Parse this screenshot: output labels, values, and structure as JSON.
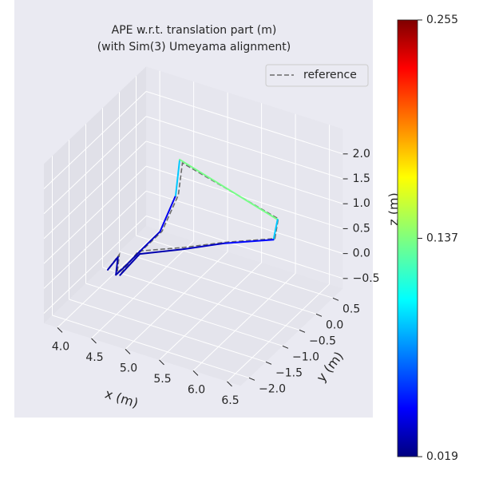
{
  "chart_data": {
    "type": "line3d",
    "title": "APE w.r.t. translation part (m)",
    "subtitle": "(with Sim(3) Umeyama alignment)",
    "xlabel": "x (m)",
    "ylabel": "y (m)",
    "zlabel": "z (m)",
    "xlim": [
      3.8,
      6.7
    ],
    "ylim": [
      -2.25,
      0.8
    ],
    "zlim": [
      -0.7,
      2.5
    ],
    "xticks": [
      {
        "value": 4,
        "label": "4.0"
      },
      {
        "value": 4.5,
        "label": "4.5"
      },
      {
        "value": 5,
        "label": "5.0"
      },
      {
        "value": 5.5,
        "label": "5.5"
      },
      {
        "value": 6,
        "label": "6.0"
      },
      {
        "value": 6.5,
        "label": "6.5"
      }
    ],
    "yticks": [
      {
        "value": -2,
        "label": "−2.0"
      },
      {
        "value": -1.5,
        "label": "−1.5"
      },
      {
        "value": -1,
        "label": "−1.0"
      },
      {
        "value": -0.5,
        "label": "−0.5"
      },
      {
        "value": 0,
        "label": "0.0"
      },
      {
        "value": 0.5,
        "label": "0.5"
      }
    ],
    "zticks": [
      {
        "value": -0.5,
        "label": "−0.5"
      },
      {
        "value": 0,
        "label": "0.0"
      },
      {
        "value": 0.5,
        "label": "0.5"
      },
      {
        "value": 1,
        "label": "1.0"
      },
      {
        "value": 1.5,
        "label": "1.5"
      },
      {
        "value": 2,
        "label": "2.0"
      }
    ],
    "grid": true,
    "trajectory": {
      "x": [
        4.0,
        4.15,
        4.12,
        4.24,
        4.47,
        4.77,
        5.0,
        5.06,
        5.86,
        5.8,
        5.36,
        4.97,
        4.47,
        4.18
      ],
      "y": [
        -0.75,
        -0.75,
        -0.75,
        -0.75,
        -0.75,
        -0.75,
        -0.75,
        -0.75,
        0.55,
        0.55,
        -0.05,
        -0.45,
        -0.75,
        -0.75
      ],
      "z": [
        -0.5,
        -0.18,
        -0.55,
        -0.35,
        0.07,
        0.6,
        1.42,
        2.17,
        0.48,
        0.05,
        0.17,
        0.14,
        0.02,
        -0.53
      ],
      "errors": [
        0.03,
        0.03,
        0.03,
        0.03,
        0.03,
        0.04,
        0.05,
        0.14,
        0.13,
        0.06,
        0.04,
        0.03,
        0.03,
        0.03
      ]
    },
    "reference": {
      "name": "reference",
      "color": "#6b6b6b",
      "x": [
        4.02,
        4.17,
        4.14,
        4.26,
        4.5,
        4.8,
        5.04,
        5.1,
        5.87,
        5.82,
        5.38,
        4.98,
        4.45,
        4.2
      ],
      "y": [
        -0.75,
        -0.75,
        -0.75,
        -0.75,
        -0.75,
        -0.75,
        -0.75,
        -0.75,
        0.55,
        0.55,
        -0.05,
        -0.45,
        -0.75,
        -0.75
      ],
      "z": [
        -0.45,
        -0.12,
        -0.5,
        -0.3,
        0.1,
        0.62,
        1.45,
        2.12,
        0.5,
        0.08,
        0.2,
        0.18,
        0.07,
        -0.48
      ]
    },
    "legend_position": "upper right",
    "colorbar": {
      "colormap": "jet",
      "lim": [
        0.019,
        0.255
      ],
      "ticks": [
        0.019,
        0.137,
        0.255
      ]
    }
  }
}
